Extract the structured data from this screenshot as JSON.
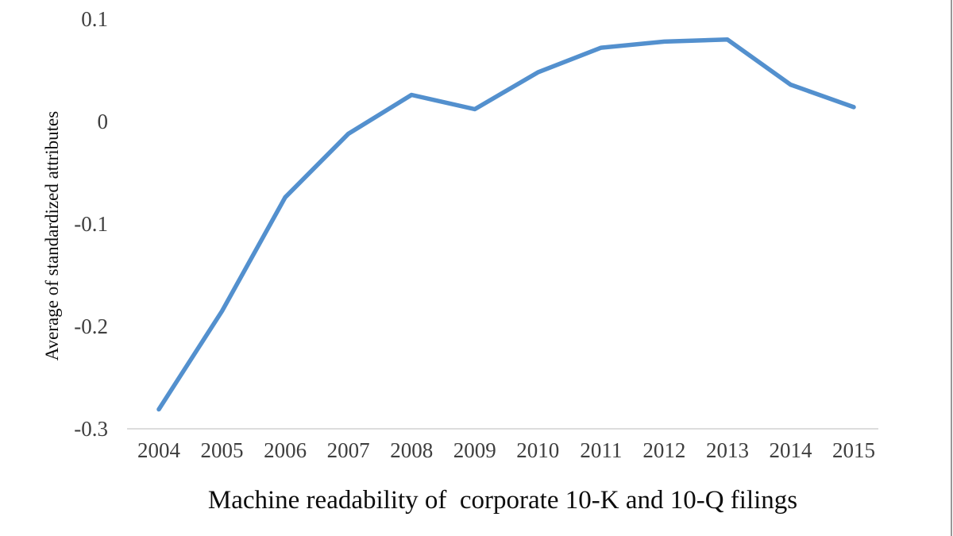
{
  "chart_data": {
    "type": "line",
    "x": [
      "2004",
      "2005",
      "2006",
      "2007",
      "2008",
      "2009",
      "2010",
      "2011",
      "2012",
      "2013",
      "2014",
      "2015"
    ],
    "series": [
      {
        "name": "Average of standardized attributes",
        "values": [
          -0.281,
          -0.185,
          -0.074,
          -0.012,
          0.026,
          0.012,
          0.048,
          0.072,
          0.078,
          0.08,
          0.036,
          0.014
        ],
        "color": "#5390CE",
        "line_width": 5.5
      }
    ],
    "title": "",
    "xlabel": "Machine readability of  corporate 10-K and 10-Q filings",
    "ylabel": "Average of standardized attributes",
    "ylim": [
      -0.3,
      0.1
    ],
    "yticks": [
      0.1,
      0,
      -0.1,
      -0.2,
      -0.3
    ],
    "ytick_labels": [
      "0.1",
      "0",
      "-0.1",
      "-0.2",
      "-0.3"
    ],
    "grid": false,
    "legend": "none",
    "markers": "none"
  },
  "colors": {
    "background": "#ffffff",
    "axis_line": "#d2d2d2",
    "tick_label": "#3e3e3e",
    "axis_title": "#0d0d0d",
    "caption": "#0d0d0d",
    "right_border": "#979797"
  }
}
